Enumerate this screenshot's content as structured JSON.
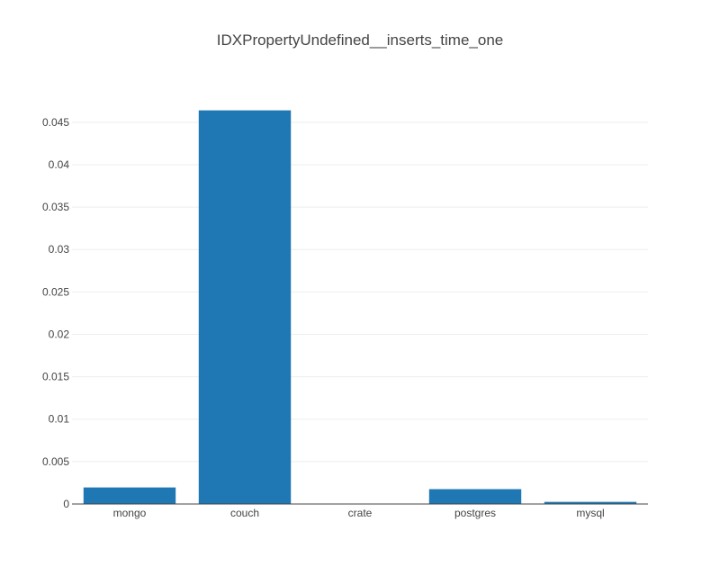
{
  "chart_data": {
    "type": "bar",
    "title": "IDXPropertyUndefined__inserts_time_one",
    "xlabel": "",
    "ylabel": "",
    "categories": [
      "mongo",
      "couch",
      "crate",
      "postgres",
      "mysql"
    ],
    "values": [
      0.00195,
      0.0464,
      0.0,
      0.00175,
      0.00025
    ],
    "ylim": [
      0,
      0.0488
    ],
    "yticks": [
      0,
      0.005,
      0.01,
      0.015,
      0.02,
      0.025,
      0.03,
      0.035,
      0.04,
      0.045
    ],
    "ytick_labels": [
      "0",
      "0.005",
      "0.01",
      "0.015",
      "0.02",
      "0.025",
      "0.03",
      "0.035",
      "0.04",
      "0.045"
    ],
    "grid": true,
    "legend": "none",
    "bar_color": "#1f77b4"
  }
}
